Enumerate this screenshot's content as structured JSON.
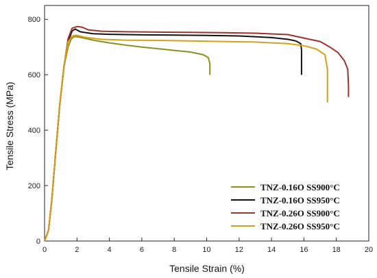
{
  "chart_data": {
    "type": "line",
    "xlabel": "Tensile Strain (%)",
    "ylabel": "Tensile Stress (MPa)",
    "xlim": [
      0,
      20
    ],
    "ylim": [
      0,
      850
    ],
    "xticks": [
      0,
      2,
      4,
      6,
      8,
      10,
      12,
      14,
      16,
      18,
      20
    ],
    "yticks": [
      0,
      200,
      400,
      600,
      800
    ],
    "grid": false,
    "legend_position": "bottom-right",
    "series": [
      {
        "name": "TNZ-0.16O SS900°C",
        "color": "#8a8f1f",
        "x": [
          0,
          0.25,
          0.45,
          0.7,
          0.95,
          1.2,
          1.45,
          1.65,
          1.85,
          2.2,
          3,
          4,
          5,
          6,
          7,
          8,
          9,
          9.8,
          10.1,
          10.2,
          10.2
        ],
        "y": [
          0,
          40,
          150,
          330,
          500,
          630,
          700,
          730,
          738,
          735,
          725,
          715,
          707,
          700,
          694,
          688,
          682,
          672,
          662,
          640,
          600
        ]
      },
      {
        "name": "TNZ-0.16O SS950°C",
        "color": "#111111",
        "x": [
          0,
          0.25,
          0.45,
          0.7,
          0.95,
          1.2,
          1.45,
          1.7,
          1.9,
          2.2,
          3,
          4,
          6,
          8,
          10,
          12,
          14,
          15,
          15.5,
          15.8,
          15.85,
          15.85
        ],
        "y": [
          0,
          40,
          150,
          330,
          500,
          630,
          720,
          758,
          765,
          755,
          748,
          746,
          744,
          743,
          742,
          740,
          734,
          728,
          722,
          712,
          690,
          600
        ]
      },
      {
        "name": "TNZ-0.26O SS900°C",
        "color": "#a0302a",
        "x": [
          0,
          0.25,
          0.45,
          0.7,
          0.95,
          1.2,
          1.45,
          1.7,
          2.0,
          2.3,
          2.7,
          3.5,
          5,
          7,
          9,
          11,
          13,
          15,
          16.2,
          17,
          17.6,
          18.1,
          18.5,
          18.7,
          18.75,
          18.75
        ],
        "y": [
          0,
          40,
          150,
          330,
          500,
          630,
          730,
          768,
          774,
          772,
          762,
          757,
          755,
          754,
          753,
          752,
          750,
          745,
          730,
          720,
          700,
          680,
          650,
          620,
          560,
          520
        ]
      },
      {
        "name": "TNZ-0.26O SS950°C",
        "color": "#d4a017",
        "x": [
          0,
          0.25,
          0.45,
          0.7,
          0.95,
          1.2,
          1.45,
          1.7,
          1.95,
          2.5,
          3.5,
          5,
          7,
          9,
          11,
          13,
          15,
          16,
          16.8,
          17.3,
          17.45,
          17.45
        ],
        "y": [
          0,
          40,
          150,
          330,
          500,
          630,
          718,
          740,
          743,
          735,
          728,
          725,
          724,
          722,
          720,
          718,
          712,
          705,
          692,
          672,
          620,
          500
        ]
      }
    ]
  }
}
